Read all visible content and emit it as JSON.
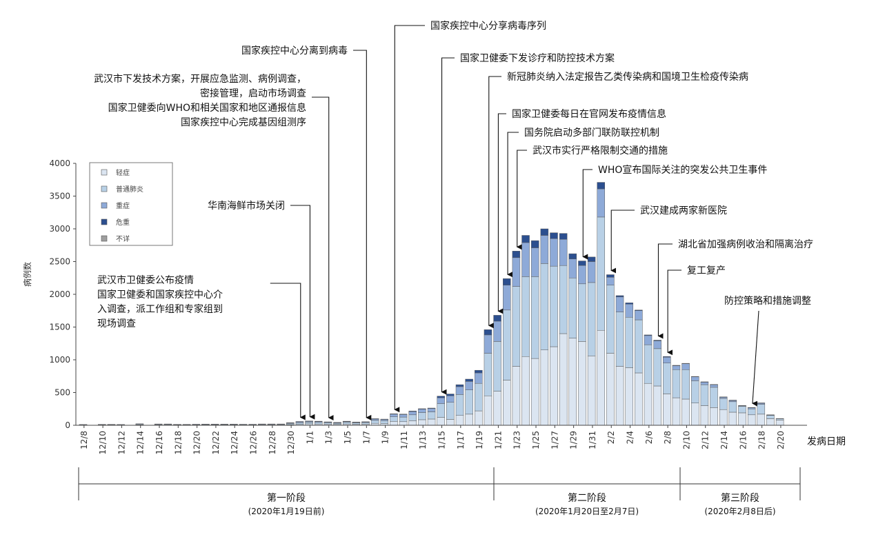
{
  "chart_data": {
    "type": "bar",
    "stacked": true,
    "xlabel": "发病日期",
    "ylabel": "病例数",
    "ylim": [
      0,
      4000
    ],
    "yticks": [
      0,
      500,
      1000,
      1500,
      2000,
      2500,
      3000,
      3500,
      4000
    ],
    "grid": false,
    "legend_position": "top-left",
    "categories": [
      "12/8",
      "12/9",
      "12/10",
      "12/11",
      "12/12",
      "12/13",
      "12/14",
      "12/15",
      "12/16",
      "12/17",
      "12/18",
      "12/19",
      "12/20",
      "12/21",
      "12/22",
      "12/23",
      "12/24",
      "12/25",
      "12/26",
      "12/27",
      "12/28",
      "12/29",
      "12/30",
      "12/31",
      "1/1",
      "1/2",
      "1/3",
      "1/4",
      "1/5",
      "1/6",
      "1/7",
      "1/8",
      "1/9",
      "1/10",
      "1/11",
      "1/12",
      "1/13",
      "1/14",
      "1/15",
      "1/16",
      "1/17",
      "1/18",
      "1/19",
      "1/20",
      "1/21",
      "1/22",
      "1/23",
      "1/24",
      "1/25",
      "1/26",
      "1/27",
      "1/28",
      "1/29",
      "1/30",
      "1/31",
      "2/1",
      "2/2",
      "2/3",
      "2/4",
      "2/5",
      "2/6",
      "2/7",
      "2/8",
      "2/9",
      "2/10",
      "2/11",
      "2/12",
      "2/13",
      "2/14",
      "2/15",
      "2/16",
      "2/17",
      "2/18",
      "2/19",
      "2/20"
    ],
    "xtick_labels": [
      "12/8",
      "12/10",
      "12/12",
      "12/14",
      "12/16",
      "12/18",
      "12/20",
      "12/22",
      "12/24",
      "12/26",
      "12/28",
      "12/30",
      "1/1",
      "1/3",
      "1/5",
      "1/7",
      "1/9",
      "1/11",
      "1/13",
      "1/15",
      "1/17",
      "1/19",
      "1/21",
      "1/23",
      "1/25",
      "1/27",
      "1/29",
      "1/31",
      "2/2",
      "2/4",
      "2/6",
      "2/8",
      "2/10",
      "2/12",
      "2/14",
      "2/16",
      "2/18",
      "2/20"
    ],
    "series": [
      {
        "name": "轻症",
        "color": "#dbe5f1",
        "values": [
          4,
          0,
          4,
          4,
          4,
          0,
          8,
          0,
          6,
          6,
          4,
          4,
          6,
          6,
          6,
          6,
          6,
          4,
          4,
          6,
          6,
          6,
          10,
          14,
          22,
          20,
          18,
          14,
          20,
          16,
          18,
          30,
          28,
          60,
          55,
          70,
          85,
          95,
          120,
          90,
          150,
          170,
          220,
          450,
          520,
          690,
          900,
          1050,
          1020,
          1150,
          1200,
          1400,
          1330,
          1280,
          1060,
          1450,
          1100,
          900,
          880,
          800,
          640,
          600,
          480,
          420,
          400,
          340,
          300,
          270,
          240,
          200,
          190,
          160,
          170,
          100,
          80
        ]
      },
      {
        "name": "普通肺炎",
        "color": "#b8d0e6",
        "values": [
          6,
          0,
          8,
          8,
          6,
          0,
          10,
          0,
          10,
          10,
          8,
          8,
          8,
          8,
          8,
          8,
          8,
          8,
          8,
          10,
          10,
          10,
          18,
          26,
          26,
          26,
          22,
          18,
          28,
          22,
          24,
          45,
          42,
          70,
          70,
          90,
          110,
          110,
          210,
          260,
          320,
          370,
          420,
          650,
          760,
          1070,
          1220,
          1220,
          1250,
          1320,
          1230,
          1040,
          920,
          880,
          1120,
          1730,
          1040,
          830,
          770,
          810,
          590,
          570,
          470,
          430,
          450,
          340,
          320,
          310,
          170,
          160,
          100,
          90,
          150,
          50,
          20
        ]
      },
      {
        "name": "重症",
        "color": "#8eaad8",
        "values": [
          2,
          0,
          2,
          2,
          2,
          0,
          6,
          0,
          4,
          4,
          2,
          2,
          2,
          4,
          4,
          4,
          4,
          4,
          4,
          4,
          4,
          4,
          10,
          14,
          14,
          12,
          10,
          10,
          12,
          10,
          10,
          22,
          20,
          40,
          40,
          50,
          50,
          50,
          90,
          100,
          120,
          130,
          160,
          280,
          310,
          380,
          440,
          520,
          440,
          430,
          420,
          400,
          290,
          280,
          320,
          430,
          120,
          230,
          200,
          140,
          140,
          120,
          90,
          60,
          90,
          60,
          40,
          40,
          20,
          20,
          10,
          20,
          20,
          8,
          4
        ]
      },
      {
        "name": "危重",
        "color": "#2c4f8f",
        "values": [
          0,
          0,
          0,
          0,
          0,
          0,
          0,
          0,
          0,
          0,
          0,
          0,
          0,
          0,
          0,
          0,
          0,
          0,
          0,
          0,
          0,
          0,
          2,
          4,
          4,
          4,
          2,
          2,
          2,
          2,
          2,
          4,
          4,
          6,
          6,
          8,
          8,
          8,
          25,
          28,
          30,
          35,
          40,
          80,
          90,
          100,
          100,
          110,
          110,
          100,
          90,
          90,
          80,
          70,
          70,
          100,
          40,
          20,
          20,
          10,
          10,
          10,
          10,
          6,
          6,
          6,
          4,
          4,
          4,
          4,
          2,
          2,
          2,
          2,
          0
        ]
      },
      {
        "name": "不详",
        "color": "#9e9e9e",
        "values": [
          0,
          0,
          0,
          0,
          0,
          0,
          0,
          0,
          0,
          0,
          0,
          0,
          0,
          0,
          0,
          0,
          0,
          0,
          0,
          0,
          0,
          0,
          0,
          0,
          0,
          0,
          0,
          0,
          0,
          0,
          0,
          0,
          0,
          0,
          0,
          0,
          0,
          0,
          0,
          0,
          0,
          0,
          0,
          0,
          0,
          0,
          0,
          0,
          0,
          0,
          0,
          0,
          0,
          0,
          0,
          0,
          0,
          0,
          0,
          0,
          0,
          0,
          0,
          0,
          0,
          0,
          0,
          0,
          0,
          0,
          0,
          0,
          0,
          0,
          0
        ]
      }
    ],
    "phases": [
      {
        "name": "第一阶段",
        "range": "(2020年1月19日前)",
        "start": "12/8",
        "end": "1/19"
      },
      {
        "name": "第二阶段",
        "range": "(2020年1月20日至2月7日)",
        "start": "1/20",
        "end": "2/7"
      },
      {
        "name": "第三阶段",
        "range": "(2020年2月8日后)",
        "start": "2/8",
        "end": "2/20"
      }
    ],
    "annotations": [
      {
        "lines": [
          "武汉市卫健委公布疫情",
          "国家卫健委和国家疾控中心介",
          "入调查，派工作组和专家组到",
          "现场调查"
        ],
        "date": "12/31"
      },
      {
        "lines": [
          "华南海鲜市场关闭"
        ],
        "date": "1/1"
      },
      {
        "lines": [
          "武汉市下发技术方案，开展应急监测、病例调查，",
          "密接管理，启动市场调查",
          "国家卫健委向WHO和相关国家和地区通报信息",
          "国家疾控中心完成基因组测序"
        ],
        "date": "1/3"
      },
      {
        "lines": [
          "国家疾控中心分离到病毒"
        ],
        "date": "1/7"
      },
      {
        "lines": [
          "国家疾控中心分享病毒序列"
        ],
        "date": "1/10"
      },
      {
        "lines": [
          "国家卫健委下发诊疗和防控技术方案"
        ],
        "date": "1/15"
      },
      {
        "lines": [
          "新冠肺炎纳入法定报告乙类传染病和国境卫生检疫传染病"
        ],
        "date": "1/20"
      },
      {
        "lines": [
          "国家卫健委每日在官网发布疫情信息"
        ],
        "date": "1/21"
      },
      {
        "lines": [
          "国务院启动多部门联防联控机制"
        ],
        "date": "1/22"
      },
      {
        "lines": [
          "武汉市实行严格限制交通的措施"
        ],
        "date": "1/23"
      },
      {
        "lines": [
          "WHO宣布国际关注的突发公共卫生事件"
        ],
        "date": "1/30"
      },
      {
        "lines": [
          "武汉建成两家新医院"
        ],
        "date": "2/2"
      },
      {
        "lines": [
          "湖北省加强病例收治和隔离治疗"
        ],
        "date": "2/7"
      },
      {
        "lines": [
          "复工复产"
        ],
        "date": "2/8"
      },
      {
        "lines": [
          "防控策略和措施调整"
        ],
        "date": "2/17"
      }
    ]
  }
}
